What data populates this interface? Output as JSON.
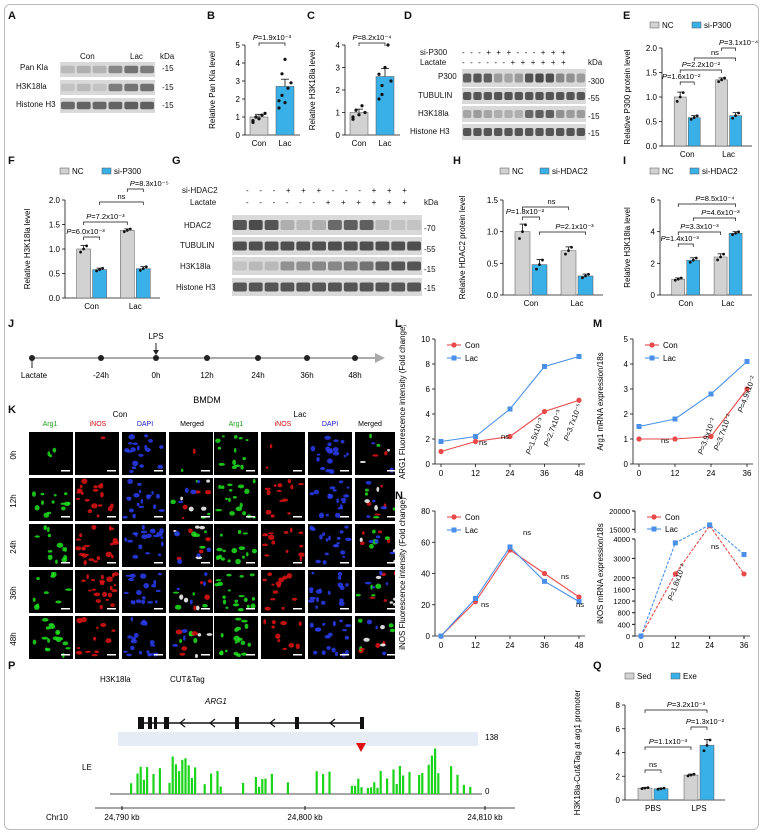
{
  "panel_labels": [
    "A",
    "B",
    "C",
    "D",
    "E",
    "F",
    "G",
    "H",
    "I",
    "J",
    "K",
    "L",
    "M",
    "N",
    "O",
    "P",
    "Q"
  ],
  "common": {
    "con": "Con",
    "lac": "Lac",
    "nc": "NC",
    "kda": "kDa",
    "ns": "ns",
    "sed": "Sed",
    "exe": "Exe",
    "pbs": "PBS",
    "lps": "LPS"
  },
  "panelA": {
    "rows": [
      "Pan Kla",
      "H3K18la",
      "Histone H3"
    ],
    "kda": [
      "-15",
      "-15",
      "-15"
    ]
  },
  "panelD": {
    "cond": [
      "si-P300",
      "Lactate"
    ],
    "signs_p300": "- - - + + + - - - + + +",
    "signs_lac": "- - - - - - + + + + + +",
    "rows": [
      "P300",
      "TUBULIN",
      "H3K18la",
      "Histone H3"
    ],
    "kda": [
      "-300",
      "-55",
      "-15",
      "-15"
    ]
  },
  "panelG": {
    "cond": [
      "si-HDAC2",
      "Lactate"
    ],
    "signs_hdac": "- - - + + + - - - + + +",
    "signs_lac": "- - - - - - + + + + + +",
    "rows": [
      "HDAC2",
      "TUBULIN",
      "H3K18la",
      "Histone H3"
    ],
    "kda": [
      "-70",
      "-55",
      "-15",
      "-15"
    ]
  },
  "panelJ": {
    "lps": "LPS",
    "lactate": "Lactate",
    "bmdm": "BMDM",
    "times": [
      "-24h",
      "0h",
      "12h",
      "24h",
      "36h",
      "48h"
    ]
  },
  "panelK": {
    "groups": [
      "Con",
      "Lac"
    ],
    "channels": [
      "Arg1",
      "iNOS",
      "DAPI",
      "Merged"
    ],
    "rows": [
      "0h",
      "12h",
      "24h",
      "36h",
      "48h"
    ]
  },
  "panelP": {
    "track": "H3K18la",
    "assay": "CUT&Tag",
    "gene": "ARG1",
    "sample": "LE",
    "ymax": "138",
    "ymin": "0",
    "chrom": "Chr10",
    "ticks": [
      "24,790 kb",
      "24,800 kb",
      "24,810 kb"
    ]
  },
  "chart_data": [
    {
      "panel": "B",
      "type": "bar",
      "categories": [
        "Con",
        "Lac"
      ],
      "values": [
        1.0,
        2.7
      ],
      "errors": [
        0.15,
        0.4
      ],
      "points": [
        [
          0.8,
          1.0,
          0.9,
          1.1,
          1.2,
          0.7,
          1.0
        ],
        [
          1.5,
          2.2,
          4.2,
          2.6,
          2.9,
          1.9,
          3.4,
          1.8
        ]
      ],
      "ylabel": "Relative Pan Kla level",
      "ylim": [
        0,
        5
      ],
      "yticks": [
        0,
        1,
        2,
        3,
        4,
        5
      ],
      "pvalue": "P=1.9x10⁻³"
    },
    {
      "panel": "C",
      "type": "bar",
      "categories": [
        "Con",
        "Lac"
      ],
      "values": [
        1.0,
        2.6
      ],
      "errors": [
        0.15,
        0.35
      ],
      "points": [
        [
          0.7,
          1.1,
          0.9,
          1.3,
          1.0,
          0.8
        ],
        [
          1.6,
          2.2,
          3.0,
          4.0,
          2.4,
          2.7,
          1.8
        ]
      ],
      "ylabel": "Relative H3K18la level",
      "ylim": [
        0,
        4
      ],
      "yticks": [
        0,
        1,
        2,
        3,
        4
      ],
      "pvalue": "P=8.2x10⁻⁴"
    },
    {
      "panel": "E",
      "type": "bar",
      "categories": [
        "Con",
        "Lac"
      ],
      "series": [
        {
          "name": "NC",
          "values": [
            1.0,
            1.35
          ],
          "errors": [
            0.1,
            0.04
          ]
        },
        {
          "name": "si-P300",
          "values": [
            0.58,
            0.62
          ],
          "errors": [
            0.04,
            0.06
          ]
        }
      ],
      "ylabel": "Relative P300 protein level",
      "ylim": [
        0,
        2.0
      ],
      "yticks": [
        0,
        0.5,
        1.0,
        1.5,
        2.0
      ],
      "pvalues": [
        "P=1.6x10⁻²",
        "P=2.2x10⁻²",
        "P=3.1x10⁻⁴",
        "ns"
      ]
    },
    {
      "panel": "F",
      "type": "bar",
      "categories": [
        "Con",
        "Lac"
      ],
      "series": [
        {
          "name": "NC",
          "values": [
            1.0,
            1.38
          ],
          "errors": [
            0.07,
            0.03
          ]
        },
        {
          "name": "si-P300",
          "values": [
            0.58,
            0.6
          ],
          "errors": [
            0.03,
            0.04
          ]
        }
      ],
      "ylabel": "Relative H3K18la level",
      "ylim": [
        0,
        2.0
      ],
      "yticks": [
        0,
        0.5,
        1.0,
        1.5,
        2.0
      ],
      "pvalues": [
        "P=6.0x10⁻³",
        "P=7.2x10⁻³",
        "P=8.3x10⁻⁵",
        "ns"
      ]
    },
    {
      "panel": "H",
      "type": "bar",
      "categories": [
        "Con",
        "Lac"
      ],
      "series": [
        {
          "name": "NC",
          "values": [
            1.0,
            0.7
          ],
          "errors": [
            0.12,
            0.06
          ]
        },
        {
          "name": "si-HDAC2",
          "values": [
            0.48,
            0.3
          ],
          "errors": [
            0.08,
            0.03
          ]
        }
      ],
      "ylabel": "Relative HDAC2 protein level",
      "ylim": [
        0,
        1.5
      ],
      "yticks": [
        0,
        0.5,
        1.0,
        1.5
      ],
      "pvalues": [
        "P=1.8x10⁻²",
        "ns",
        "P=2.1x10⁻³"
      ]
    },
    {
      "panel": "I",
      "type": "bar",
      "categories": [
        "Con",
        "Lac"
      ],
      "series": [
        {
          "name": "NC",
          "values": [
            1.0,
            2.4
          ],
          "errors": [
            0.08,
            0.2
          ]
        },
        {
          "name": "si-HDAC2",
          "values": [
            2.2,
            3.9
          ],
          "errors": [
            0.15,
            0.1
          ]
        }
      ],
      "ylabel": "Relative H3K18la level",
      "ylim": [
        0,
        6
      ],
      "yticks": [
        0,
        2,
        4,
        6
      ],
      "pvalues": [
        "P=1.4x10⁻³",
        "P=3.3x10⁻³",
        "P=4.6x10⁻³",
        "P=8.5x10⁻⁴"
      ]
    },
    {
      "panel": "L",
      "type": "line",
      "x": [
        0,
        12,
        24,
        36,
        48
      ],
      "series": [
        {
          "name": "Con",
          "values": [
            1.0,
            1.8,
            2.2,
            4.2,
            5.1
          ]
        },
        {
          "name": "Lac",
          "values": [
            1.8,
            2.2,
            4.4,
            7.8,
            8.6
          ]
        }
      ],
      "ylabel": "ARG1 Fluorescence intensity (Fold change)",
      "ylim": [
        0,
        10
      ],
      "yticks": [
        0,
        2,
        4,
        6,
        8,
        10
      ],
      "xticks": [
        0,
        12,
        24,
        36,
        48
      ],
      "pvalues": [
        "ns",
        "ns",
        "P=1.5x10⁻³",
        "P=2.7x10⁻³",
        "P=3.7x10⁻⁵"
      ]
    },
    {
      "panel": "M",
      "type": "line",
      "x": [
        0,
        12,
        24,
        36
      ],
      "series": [
        {
          "name": "Con",
          "values": [
            1.0,
            1.0,
            1.1,
            3.0
          ]
        },
        {
          "name": "Lac",
          "values": [
            1.5,
            1.8,
            2.8,
            4.1
          ]
        }
      ],
      "ylabel": "Arg1 mRNA expression/18s",
      "ylim": [
        0,
        5
      ],
      "yticks": [
        0,
        1,
        2,
        3,
        4,
        5
      ],
      "xticks": [
        0,
        12,
        24,
        36
      ],
      "pvalues": [
        "ns",
        "P=3.9x10⁻²",
        "P=3.7x10⁻²",
        "P=4.9x10⁻²"
      ]
    },
    {
      "panel": "N",
      "type": "line",
      "x": [
        0,
        12,
        24,
        36,
        48
      ],
      "series": [
        {
          "name": "Con",
          "values": [
            0,
            22,
            55,
            40,
            25
          ]
        },
        {
          "name": "Lac",
          "values": [
            0,
            24,
            57,
            35,
            22
          ]
        }
      ],
      "ylabel": "iNOS Fluorescence intensity (Fold change)",
      "ylim": [
        0,
        80
      ],
      "yticks": [
        0,
        20,
        40,
        60,
        80
      ],
      "xticks": [
        0,
        12,
        24,
        36,
        48
      ],
      "pvalues": [
        "ns",
        "ns",
        "ns",
        "ns"
      ]
    },
    {
      "panel": "O",
      "type": "line",
      "x": [
        0,
        12,
        24,
        36
      ],
      "series": [
        {
          "name": "Con",
          "values": [
            0,
            2200,
            16000,
            2200
          ]
        },
        {
          "name": "Lac",
          "values": [
            0,
            3800,
            16200,
            3200
          ]
        }
      ],
      "ylabel": "iNOS mRNA expression/18s",
      "yticks_upper": [
        15000,
        20000
      ],
      "yticks_lower": [
        0,
        400,
        800,
        1200,
        1600,
        2000,
        3000,
        4000
      ],
      "xticks": [
        0,
        12,
        24,
        36
      ],
      "pvalues": [
        "P=1.8x10⁻²",
        "ns"
      ]
    },
    {
      "panel": "Q",
      "type": "bar",
      "categories": [
        "PBS",
        "LPS"
      ],
      "series": [
        {
          "name": "Sed",
          "values": [
            1.0,
            2.1
          ],
          "errors": [
            0.05,
            0.08
          ]
        },
        {
          "name": "Exe",
          "values": [
            0.95,
            4.6
          ],
          "errors": [
            0.05,
            0.5
          ]
        }
      ],
      "ylabel": "H3K18la-Cut&Tag at arg1 promoter",
      "ylim": [
        0,
        8
      ],
      "yticks": [
        0,
        2,
        4,
        6,
        8
      ],
      "pvalues": [
        "P=1.1x10⁻³",
        "ns",
        "P=1.3x10⁻²",
        "P=3.2x10⁻³"
      ]
    }
  ]
}
